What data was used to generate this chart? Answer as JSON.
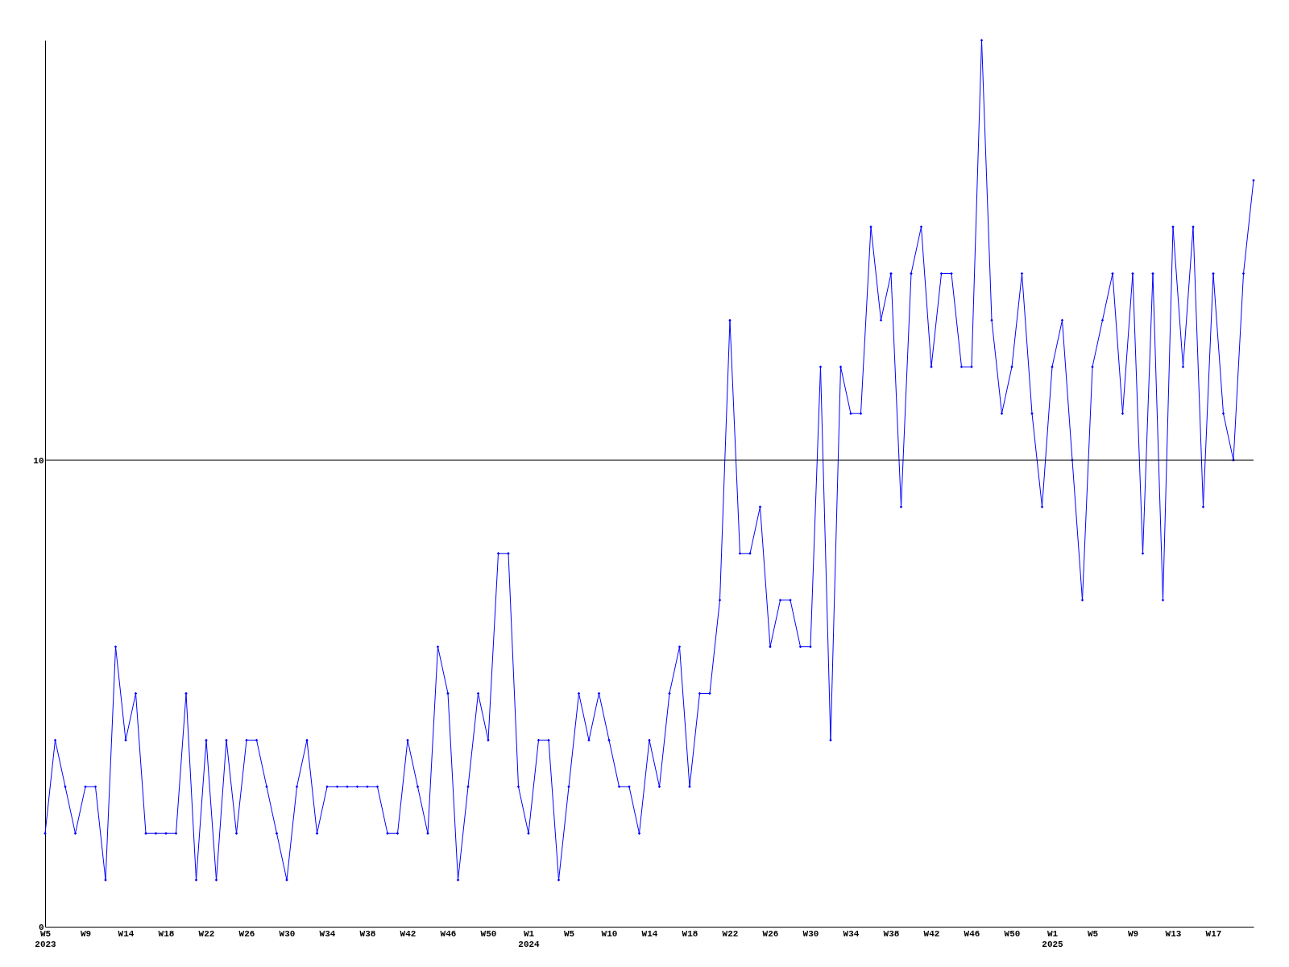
{
  "chart_data": {
    "type": "line",
    "categories": [
      "W5\n2023",
      null,
      null,
      null,
      "W9",
      null,
      null,
      null,
      "W14",
      null,
      null,
      null,
      "W18",
      null,
      null,
      null,
      "W22",
      null,
      null,
      null,
      "W26",
      null,
      null,
      null,
      "W30",
      null,
      null,
      null,
      "W34",
      null,
      null,
      null,
      "W38",
      null,
      null,
      null,
      "W42",
      null,
      null,
      null,
      "W46",
      null,
      null,
      null,
      "W50",
      null,
      null,
      null,
      "W1\n2024",
      null,
      null,
      null,
      "W5",
      null,
      null,
      null,
      "W10",
      null,
      null,
      null,
      "W14",
      null,
      null,
      null,
      "W18",
      null,
      null,
      null,
      "W22",
      null,
      null,
      null,
      "W26",
      null,
      null,
      null,
      "W30",
      null,
      null,
      null,
      "W34",
      null,
      null,
      null,
      "W38",
      null,
      null,
      null,
      "W42",
      null,
      null,
      null,
      "W46",
      null,
      null,
      null,
      "W50",
      null,
      null,
      null,
      "W1\n2025",
      null,
      null,
      null,
      "W5",
      null,
      null,
      null,
      "W9",
      null,
      null,
      null,
      "W13",
      null,
      null,
      null,
      "W17",
      null,
      null,
      null,
      null
    ],
    "series": [
      {
        "color": "#0000ff",
        "values": [
          2,
          4,
          3,
          2,
          3,
          3,
          1,
          6,
          4,
          5,
          2,
          2,
          2,
          2,
          5,
          1,
          4,
          1,
          4,
          2,
          4,
          4,
          3,
          2,
          1,
          3,
          4,
          2,
          3,
          3,
          3,
          3,
          3,
          3,
          2,
          2,
          4,
          3,
          2,
          6,
          5,
          1,
          3,
          5,
          4,
          8,
          8,
          3,
          2,
          4,
          4,
          1,
          3,
          5,
          4,
          5,
          4,
          3,
          3,
          2,
          4,
          3,
          5,
          6,
          3,
          5,
          5,
          7,
          13,
          8,
          8,
          9,
          6,
          7,
          7,
          6,
          6,
          12,
          4,
          12,
          11,
          11,
          15,
          13,
          14,
          9,
          14,
          15,
          12,
          14,
          14,
          12,
          12,
          19,
          13,
          11,
          12,
          14,
          11,
          9,
          12,
          13,
          10,
          7,
          12,
          13,
          14,
          11,
          14,
          8,
          14,
          7,
          15,
          12,
          15,
          9,
          14,
          11,
          10,
          14,
          16
        ]
      }
    ],
    "ylim": [
      0,
      19
    ],
    "yticks": [
      0,
      10
    ],
    "grid": false,
    "marker": "diamond",
    "line_style": "solid",
    "ref_lines": [
      {
        "axis": "y",
        "value": 10,
        "color": "#000000"
      }
    ]
  }
}
